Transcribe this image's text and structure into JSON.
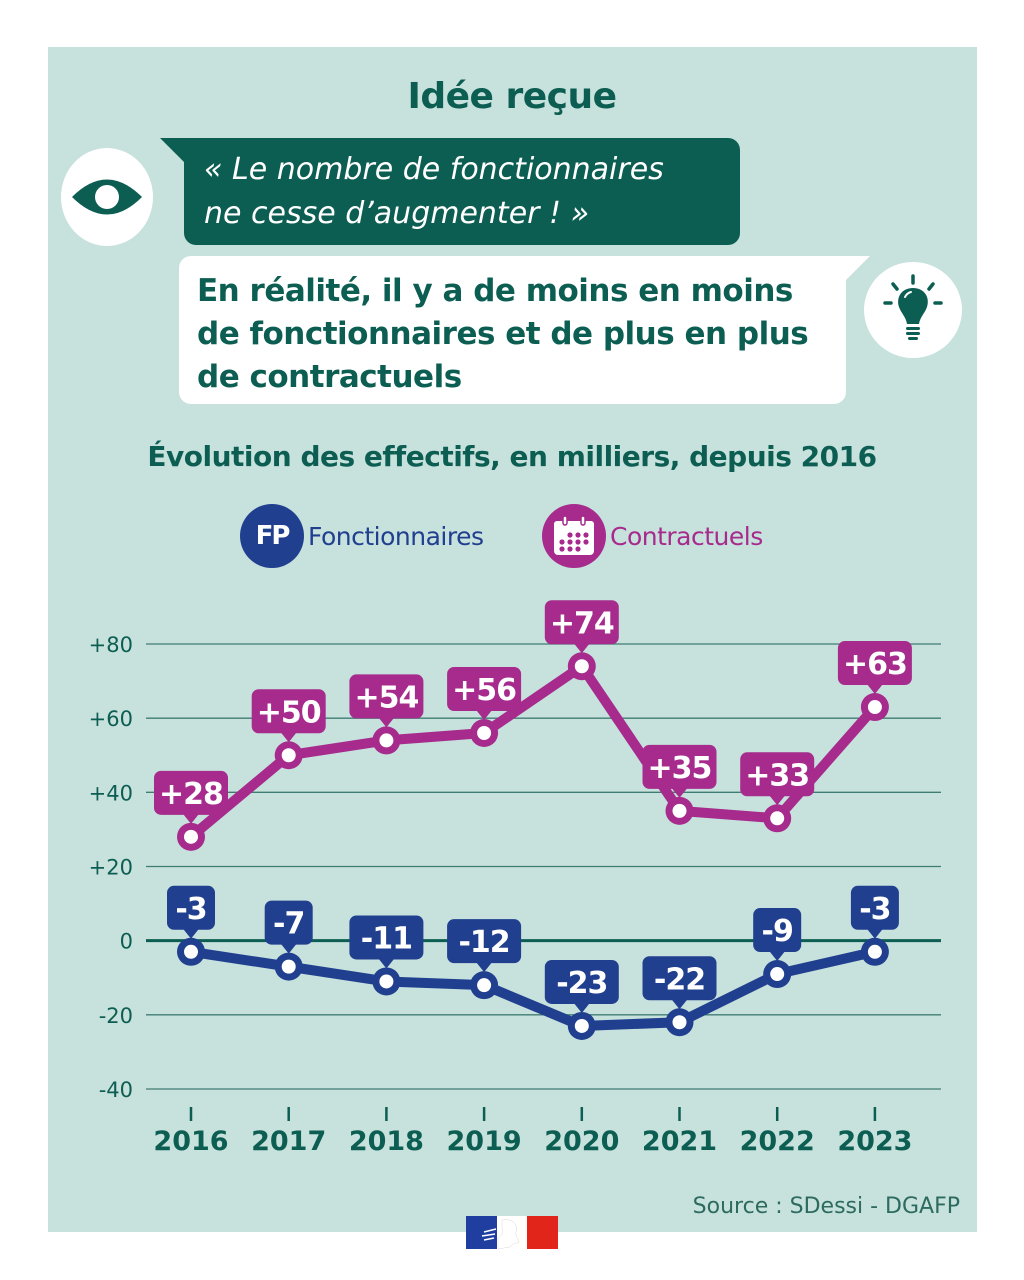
{
  "header": {
    "title": "Idée reçue",
    "myth_line1": "« Le nombre de fonctionnaires",
    "myth_line2": "ne cesse d’augmenter ! »",
    "fact_line1": "En réalité, il y a de moins en moins",
    "fact_line2": "de fonctionnaires et de plus en plus",
    "fact_line3": "de contractuels",
    "myth_icon": "eye-icon",
    "fact_icon": "lightbulb-icon"
  },
  "legend": {
    "fp_badge": "FP",
    "fp_label": "Fonctionnaires",
    "ct_label": "Contractuels",
    "ct_icon": "calendar-icon"
  },
  "colors": {
    "background": "#c7e1dd",
    "brand_green": "#0d5e52",
    "fonctionnaires": "#213f8f",
    "contractuels": "#a62b8c"
  },
  "footer": {
    "source": "Source : SDessi - DGAFP",
    "logo": "marianne-logo"
  },
  "chart_data": {
    "type": "line",
    "title": "Évolution des effectifs, en milliers, depuis 2016",
    "xlabel": "",
    "ylabel": "",
    "categories": [
      "2016",
      "2017",
      "2018",
      "2019",
      "2020",
      "2021",
      "2022",
      "2023"
    ],
    "y_ticks": [
      80,
      60,
      40,
      20,
      0,
      -20,
      -40
    ],
    "y_tick_labels": [
      "+80",
      "+60",
      "+40",
      "+20",
      "0",
      "-20",
      "-40"
    ],
    "ylim": [
      -40,
      80
    ],
    "grid": true,
    "legend_position": "top-center",
    "series": [
      {
        "name": "Contractuels",
        "color": "#a62b8c",
        "values": [
          28,
          50,
          54,
          56,
          74,
          35,
          33,
          63
        ],
        "labels": [
          "+28",
          "+50",
          "+54",
          "+56",
          "+74",
          "+35",
          "+33",
          "+63"
        ]
      },
      {
        "name": "Fonctionnaires",
        "color": "#213f8f",
        "values": [
          -3,
          -7,
          -11,
          -12,
          -23,
          -22,
          -9,
          -3
        ],
        "labels": [
          "-3",
          "-7",
          "-11",
          "-12",
          "-23",
          "-22",
          "-9",
          "-3"
        ]
      }
    ]
  }
}
